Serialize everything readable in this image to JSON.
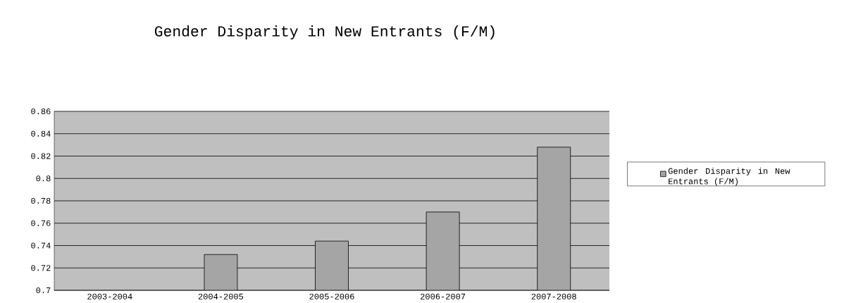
{
  "chart_data": {
    "type": "bar",
    "title": "Gender Disparity in New Entrants (F/M)",
    "categories": [
      "2003-2004",
      "2004-2005",
      "2005-2006",
      "2006-2007",
      "2007-2008"
    ],
    "series": [
      {
        "name": "Gender Disparity in New Entrants (F/M)",
        "color": "#a5a5a5",
        "values": [
          null,
          0.732,
          0.744,
          0.77,
          0.828
        ]
      }
    ],
    "ylim": [
      0.7,
      0.86
    ],
    "yticks": [
      0.7,
      0.72,
      0.74,
      0.76,
      0.78,
      0.8,
      0.82,
      0.84,
      0.86
    ],
    "grid": "y",
    "legend": "right"
  }
}
